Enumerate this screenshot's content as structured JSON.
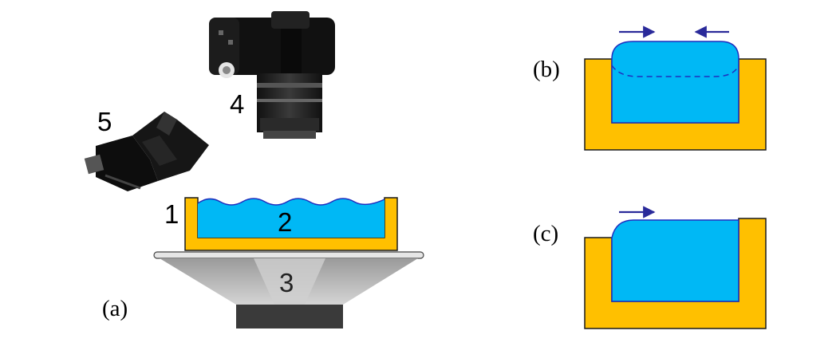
{
  "panels": {
    "a": {
      "label": "(a)"
    },
    "b": {
      "label": "(b)"
    },
    "c": {
      "label": "(c)"
    }
  },
  "parts": {
    "container": "1",
    "water": "2",
    "light": "3",
    "camera": "4",
    "flash": "5"
  },
  "colors": {
    "container": "#FFC000",
    "water": "#00B8F5",
    "outline": "#1a1a1a",
    "arrow": "#2A2A9A",
    "surface_line": "#1E2FBF",
    "diffuser": "#E6E6E6",
    "lamp_base": "#3A3A3A"
  },
  "icons": {
    "camera": "camera-icon",
    "flash": "flash-icon",
    "arrow": "arrow-right-icon"
  }
}
